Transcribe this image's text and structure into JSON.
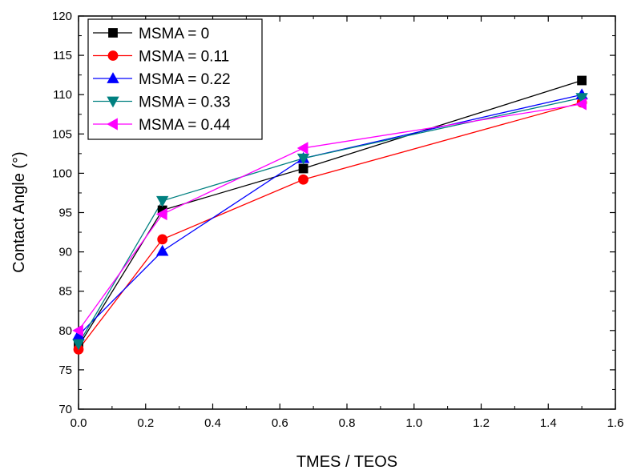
{
  "chart_data": {
    "type": "line",
    "xlabel": "TMES / TEOS",
    "ylabel": "Contact Angle (°)",
    "xlim": [
      0.0,
      1.6
    ],
    "ylim": [
      70,
      120
    ],
    "xticks": [
      "0.0",
      "0.2",
      "0.4",
      "0.6",
      "0.8",
      "1.0",
      "1.2",
      "1.4",
      "1.6"
    ],
    "yticks": [
      "70",
      "75",
      "80",
      "85",
      "90",
      "95",
      "100",
      "105",
      "110",
      "115",
      "120"
    ],
    "grid": false,
    "legend_position": "top-left",
    "x": [
      0.0,
      0.25,
      0.67,
      1.5
    ],
    "series": [
      {
        "name": "MSMA = 0",
        "marker": "square",
        "color": "#000000",
        "values": [
          78.0,
          95.3,
          100.6,
          111.8
        ]
      },
      {
        "name": "MSMA = 0.11",
        "marker": "circle",
        "color": "#ff0000",
        "values": [
          77.6,
          91.6,
          99.2,
          109.0
        ]
      },
      {
        "name": "MSMA = 0.22",
        "marker": "triangle-up",
        "color": "#0000ff",
        "values": [
          79.4,
          90.1,
          101.9,
          110.0
        ]
      },
      {
        "name": "MSMA = 0.33",
        "marker": "triangle-down",
        "color": "#008080",
        "values": [
          78.3,
          96.5,
          101.9,
          109.6
        ]
      },
      {
        "name": "MSMA = 0.44",
        "marker": "triangle-left",
        "color": "#ff00ff",
        "values": [
          80.0,
          94.8,
          103.2,
          108.8
        ]
      }
    ]
  }
}
